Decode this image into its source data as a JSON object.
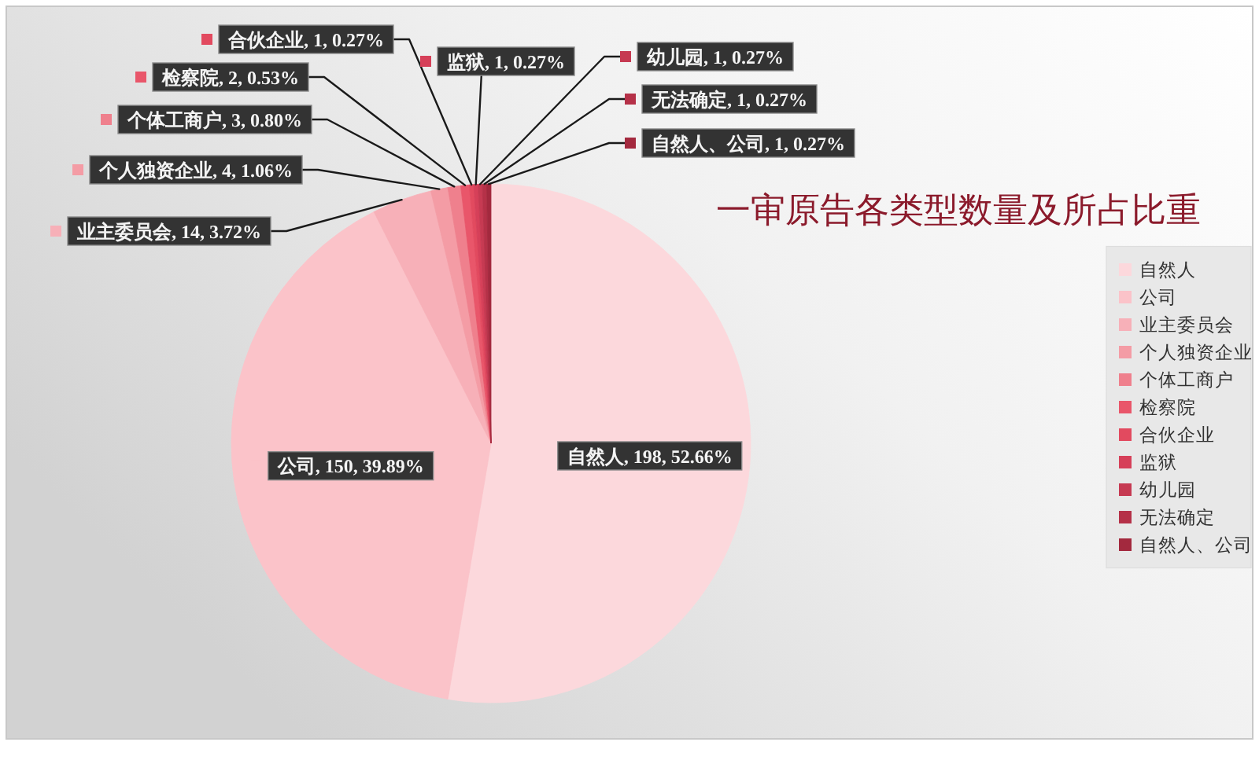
{
  "chart_data": {
    "type": "pie",
    "title": "一审原告各类型数量及所占比重",
    "categories": [
      "自然人",
      "公司",
      "业主委员会",
      "个人独资企业",
      "个体工商户",
      "检察院",
      "合伙企业",
      "监狱",
      "幼儿园",
      "无法确定",
      "自然人、公司"
    ],
    "values": [
      198,
      150,
      14,
      4,
      3,
      2,
      1,
      1,
      1,
      1,
      1
    ],
    "colors": [
      "#fcd8dc",
      "#fbc3c9",
      "#f7b0b8",
      "#f49ca5",
      "#ef808d",
      "#e9566a",
      "#e24a5f",
      "#d64059",
      "#c63a52",
      "#b53148",
      "#a3293e"
    ],
    "value_labels": [
      "自然人, 198, 52.66%",
      "公司, 150, 39.89%",
      "业主委员会, 14, 3.72%",
      "个人独资企业, 4, 1.06%",
      "个体工商户, 3, 0.80%",
      "检察院, 2, 0.53%",
      "合伙企业, 1, 0.27%",
      "监狱, 1, 0.27%",
      "幼儿园, 1, 0.27%",
      "无法确定, 1, 0.27%",
      "自然人、公司, 1, 0.27%"
    ],
    "legend": "right"
  }
}
